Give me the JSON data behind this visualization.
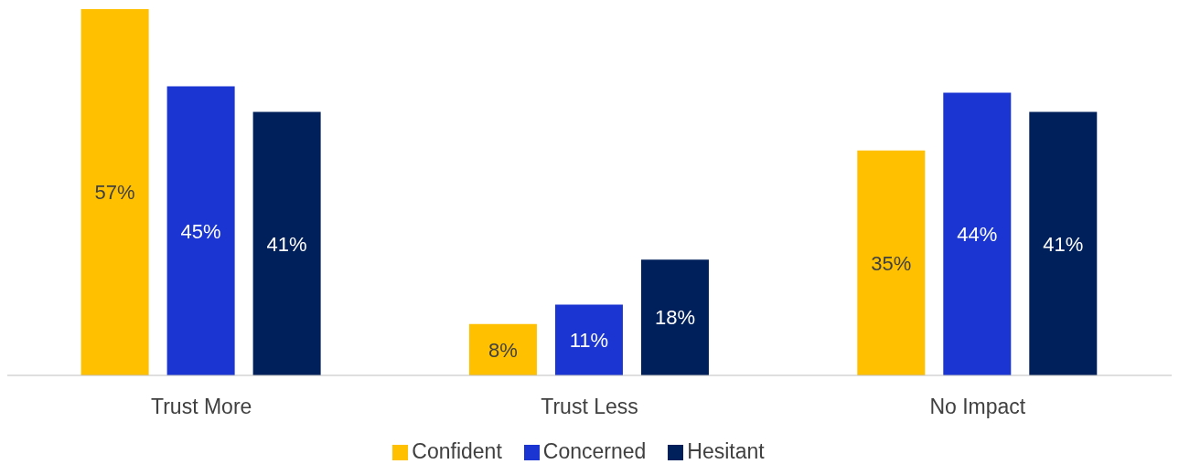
{
  "chart_data": {
    "type": "bar",
    "categories": [
      "Trust More",
      "Trust Less",
      "No Impact"
    ],
    "series": [
      {
        "name": "Confident",
        "color": "#ffc000",
        "values": [
          57,
          8,
          35
        ],
        "value_labels": [
          "57%",
          "8%",
          "35%"
        ]
      },
      {
        "name": "Concerned",
        "color": "#1a35d2",
        "values": [
          45,
          11,
          44
        ],
        "value_labels": [
          "45%",
          "11%",
          "44%"
        ]
      },
      {
        "name": "Hesitant",
        "color": "#00205b",
        "values": [
          41,
          18,
          41
        ],
        "value_labels": [
          "41%",
          "18%",
          "41%"
        ]
      }
    ],
    "legend": "bottom",
    "grid": false
  }
}
